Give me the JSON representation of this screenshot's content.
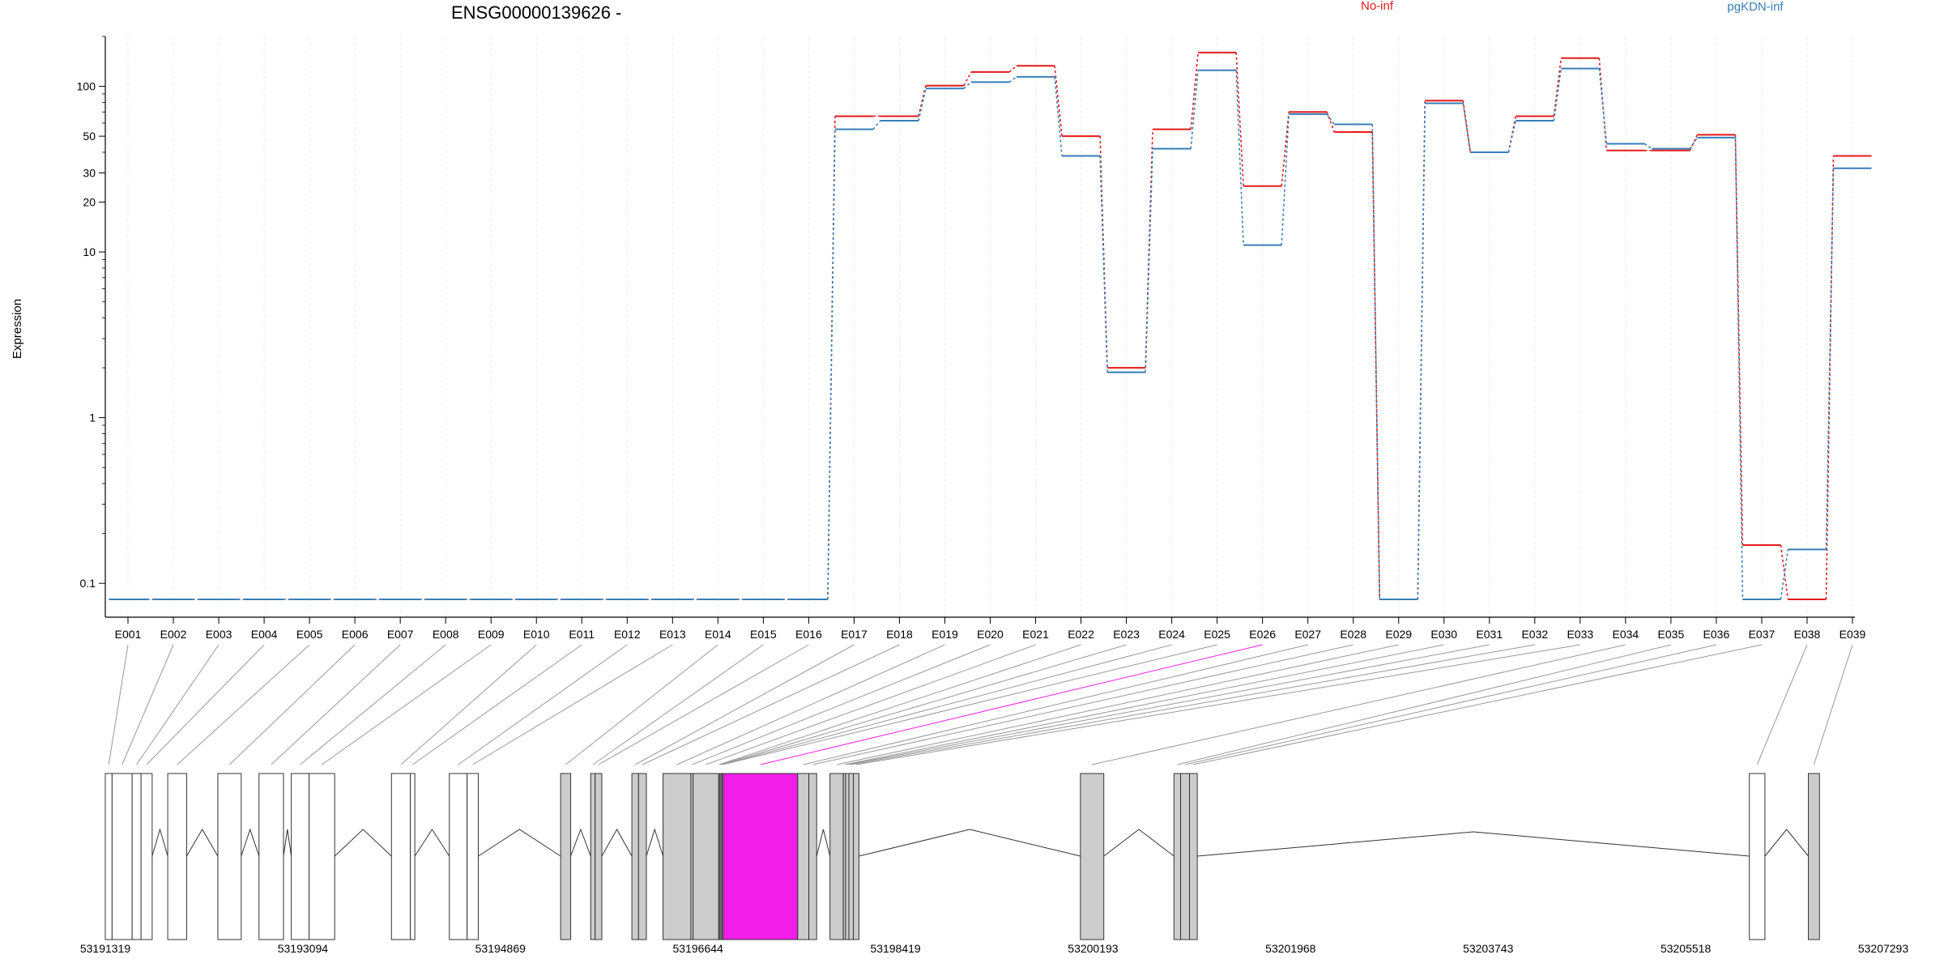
{
  "chart_data": {
    "type": "line",
    "title": "ENSG00000139626 -",
    "ylabel": "Expression",
    "xlabel": "",
    "yscale": "log",
    "ylim": [
      0.08,
      200
    ],
    "yticks": [
      0.1,
      1,
      10,
      20,
      30,
      50,
      100
    ],
    "grid": "vertical",
    "legend_position": "top",
    "categories": [
      "E001",
      "E002",
      "E003",
      "E004",
      "E005",
      "E006",
      "E007",
      "E008",
      "E009",
      "E010",
      "E011",
      "E012",
      "E013",
      "E014",
      "E015",
      "E016",
      "E017",
      "E018",
      "E019",
      "E020",
      "E021",
      "E022",
      "E023",
      "E024",
      "E025",
      "E026",
      "E027",
      "E028",
      "E029",
      "E030",
      "E031",
      "E032",
      "E033",
      "E034",
      "E035",
      "E036",
      "E037",
      "E038",
      "E039"
    ],
    "series": [
      {
        "name": "No-inf",
        "color": "#e41a1c",
        "values": [
          0.08,
          0.08,
          0.08,
          0.08,
          0.08,
          0.08,
          0.08,
          0.08,
          0.08,
          0.08,
          0.08,
          0.08,
          0.08,
          0.08,
          0.08,
          0.08,
          66,
          66,
          101,
          122,
          133,
          50,
          2.0,
          55,
          160,
          25,
          70,
          53,
          0.08,
          82,
          40,
          66,
          148,
          41,
          41,
          51,
          0.17,
          0.08,
          38
        ]
      },
      {
        "name": "pgKDN-inf",
        "color": "#377eb8",
        "values": [
          0.08,
          0.08,
          0.08,
          0.08,
          0.08,
          0.08,
          0.08,
          0.08,
          0.08,
          0.08,
          0.08,
          0.08,
          0.08,
          0.08,
          0.08,
          0.08,
          55,
          62,
          97,
          106,
          114,
          38,
          1.88,
          42,
          125,
          11,
          68,
          59,
          0.08,
          79,
          40,
          62,
          128,
          45,
          42,
          49,
          0.08,
          0.16,
          32
        ]
      }
    ],
    "highlight_exon": "E026",
    "highlight_color": "#f01ee8",
    "genomic_ticks": [
      "53191319",
      "53193094",
      "53194869",
      "53196644",
      "53198419",
      "53200193",
      "53201968",
      "53203743",
      "53205518",
      "53207293"
    ],
    "genomic_range": [
      53191319,
      53207293
    ],
    "gene_model_exons": [
      {
        "id": "E001",
        "start": 53191319,
        "end": 53191380,
        "fill": "white"
      },
      {
        "id": "E002",
        "start": 53191380,
        "end": 53191560,
        "fill": "white"
      },
      {
        "id": "E003",
        "start": 53191560,
        "end": 53191640,
        "fill": "white"
      },
      {
        "id": "E004",
        "start": 53191640,
        "end": 53191740,
        "fill": "white"
      },
      {
        "id": "E005",
        "start": 53191880,
        "end": 53192050,
        "fill": "white"
      },
      {
        "id": "E006",
        "start": 53192330,
        "end": 53192540,
        "fill": "white"
      },
      {
        "id": "E007",
        "start": 53192700,
        "end": 53192920,
        "fill": "white"
      },
      {
        "id": "E008",
        "start": 53192990,
        "end": 53193150,
        "fill": "white"
      },
      {
        "id": "E009",
        "start": 53193150,
        "end": 53193380,
        "fill": "white"
      },
      {
        "id": "E010",
        "start": 53193890,
        "end": 53194060,
        "fill": "white"
      },
      {
        "id": "E011",
        "start": 53194060,
        "end": 53194100,
        "fill": "white"
      },
      {
        "id": "E012",
        "start": 53194410,
        "end": 53194570,
        "fill": "white"
      },
      {
        "id": "E013",
        "start": 53194570,
        "end": 53194670,
        "fill": "white"
      },
      {
        "id": "E014",
        "start": 53195410,
        "end": 53195500,
        "fill": "gray"
      },
      {
        "id": "E015",
        "start": 53195680,
        "end": 53195720,
        "fill": "gray"
      },
      {
        "id": "E016",
        "start": 53195720,
        "end": 53195780,
        "fill": "gray"
      },
      {
        "id": "E017",
        "start": 53196050,
        "end": 53196110,
        "fill": "gray"
      },
      {
        "id": "E018",
        "start": 53196110,
        "end": 53196180,
        "fill": "gray"
      },
      {
        "id": "E019",
        "start": 53196330,
        "end": 53196580,
        "fill": "gray"
      },
      {
        "id": "E020",
        "start": 53196580,
        "end": 53196600,
        "fill": "gray"
      },
      {
        "id": "E021",
        "start": 53196600,
        "end": 53196830,
        "fill": "gray"
      },
      {
        "id": "E022",
        "start": 53196830,
        "end": 53196840,
        "fill": "gray"
      },
      {
        "id": "E023",
        "start": 53196840,
        "end": 53196850,
        "fill": "gray"
      },
      {
        "id": "E024",
        "start": 53196850,
        "end": 53196860,
        "fill": "gray"
      },
      {
        "id": "E025",
        "start": 53196860,
        "end": 53196870,
        "fill": "gray"
      },
      {
        "id": "E026",
        "start": 53196870,
        "end": 53197540,
        "fill": "magenta"
      },
      {
        "id": "E027",
        "start": 53197540,
        "end": 53197640,
        "fill": "gray"
      },
      {
        "id": "E028",
        "start": 53197640,
        "end": 53197710,
        "fill": "gray"
      },
      {
        "id": "E029",
        "start": 53197830,
        "end": 53197950,
        "fill": "gray"
      },
      {
        "id": "E030",
        "start": 53197950,
        "end": 53197970,
        "fill": "gray"
      },
      {
        "id": "E031",
        "start": 53197970,
        "end": 53198000,
        "fill": "gray"
      },
      {
        "id": "E032",
        "start": 53198000,
        "end": 53198040,
        "fill": "gray"
      },
      {
        "id": "E033",
        "start": 53198040,
        "end": 53198090,
        "fill": "gray"
      },
      {
        "id": "E034",
        "start": 53200080,
        "end": 53200290,
        "fill": "gray"
      },
      {
        "id": "E035",
        "start": 53200920,
        "end": 53200980,
        "fill": "gray"
      },
      {
        "id": "E036",
        "start": 53200980,
        "end": 53201060,
        "fill": "gray"
      },
      {
        "id": "E037",
        "start": 53201060,
        "end": 53201130,
        "fill": "gray"
      },
      {
        "id": "E038",
        "start": 53206090,
        "end": 53206230,
        "fill": "white"
      },
      {
        "id": "E039",
        "start": 53206620,
        "end": 53206720,
        "fill": "gray"
      }
    ]
  }
}
